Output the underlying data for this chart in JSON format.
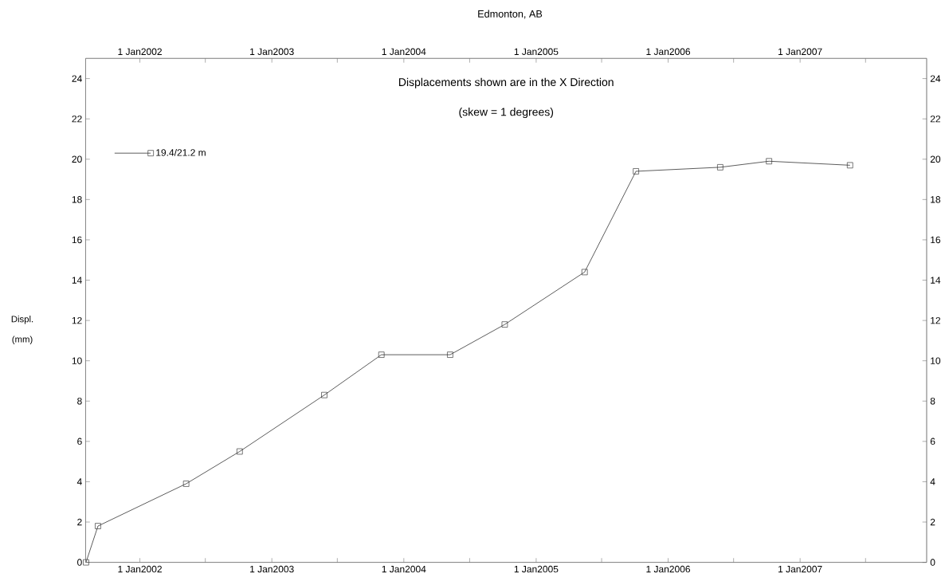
{
  "chart_data": {
    "type": "line",
    "title": "Edmonton, AB",
    "ylabel": "Displ. (mm)",
    "annotations": [
      "Displacements shown are in the  X Direction",
      "(skew = 1 degrees)"
    ],
    "series": [
      {
        "name": "19.4/21.2 m",
        "color": "#333333",
        "x": [
          "2001-08-05",
          "2001-09-07",
          "2002-05-09",
          "2002-10-04",
          "2003-05-26",
          "2003-10-31",
          "2004-05-08",
          "2004-10-06",
          "2005-05-15",
          "2005-10-04",
          "2006-05-25",
          "2006-10-07",
          "2007-05-19"
        ],
        "values": [
          0,
          1.8,
          3.9,
          5.5,
          8.3,
          10.3,
          10.3,
          11.8,
          14.4,
          19.4,
          19.6,
          19.9,
          19.7
        ]
      }
    ],
    "xlim": [
      "2001-08-04",
      "2007-12-17"
    ],
    "xticks": [
      {
        "value": "2002-01-01",
        "label": "1 Jan2002"
      },
      {
        "value": "2002-07-01",
        "label": null
      },
      {
        "value": "2003-01-01",
        "label": "1 Jan2003"
      },
      {
        "value": "2003-07-01",
        "label": null
      },
      {
        "value": "2004-01-01",
        "label": "1 Jan2004"
      },
      {
        "value": "2004-07-01",
        "label": null
      },
      {
        "value": "2005-01-01",
        "label": "1 Jan2005"
      },
      {
        "value": "2005-07-01",
        "label": null
      },
      {
        "value": "2006-01-01",
        "label": "1 Jan2006"
      },
      {
        "value": "2006-07-01",
        "label": null
      },
      {
        "value": "2007-01-01",
        "label": "1 Jan2007"
      },
      {
        "value": "2007-07-01",
        "label": null
      }
    ],
    "x2lim": [
      "2001-08-04",
      "2007-12-17"
    ],
    "x2ticks": [
      {
        "value": "2002-01-01",
        "label": "1 Jan2002"
      },
      {
        "value": "2002-07-01",
        "label": null
      },
      {
        "value": "2003-01-01",
        "label": "1 Jan2003"
      },
      {
        "value": "2003-07-01",
        "label": null
      },
      {
        "value": "2004-01-01",
        "label": "1 Jan2004"
      },
      {
        "value": "2004-07-01",
        "label": null
      },
      {
        "value": "2005-01-01",
        "label": "1 Jan2005"
      },
      {
        "value": "2005-07-01",
        "label": null
      },
      {
        "value": "2006-01-01",
        "label": "1 Jan2006"
      },
      {
        "value": "2006-07-01",
        "label": null
      },
      {
        "value": "2007-01-01",
        "label": "1 Jan2007"
      },
      {
        "value": "2007-07-01",
        "label": null
      }
    ],
    "ylim": [
      0,
      25
    ],
    "yticks": [
      0,
      2,
      4,
      6,
      8,
      10,
      12,
      14,
      16,
      18,
      20,
      22,
      24
    ],
    "y2lim": [
      0,
      25
    ],
    "y2ticks": [
      0,
      2,
      4,
      6,
      8,
      10,
      12,
      14,
      16,
      18,
      20,
      22,
      24
    ],
    "legend": "top left",
    "marker": "square",
    "line_style": "solid"
  }
}
